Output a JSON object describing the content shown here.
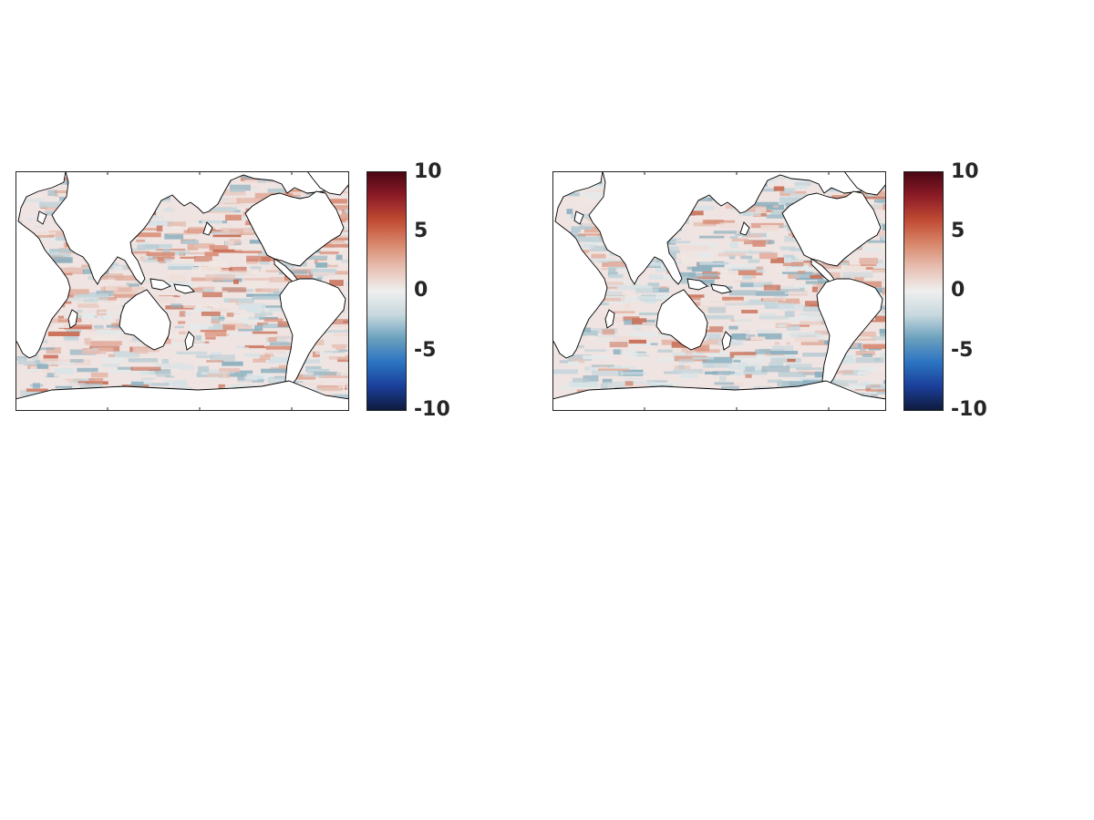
{
  "panels": [
    {
      "id": "left",
      "pattern": "warm"
    },
    {
      "id": "right",
      "pattern": "mild"
    }
  ],
  "colorbar": {
    "range": [
      -10,
      10
    ],
    "ticks": [
      "10",
      "5",
      "0",
      "-5",
      "-10"
    ],
    "tick_values": [
      10,
      5,
      0,
      -5,
      -10
    ],
    "stops": [
      "#0f1b3d",
      "#1b3f9a",
      "#2b73c2",
      "#6aa0bd",
      "#c7d8de",
      "#efefee",
      "#e7bfb2",
      "#d8866a",
      "#c04a33",
      "#8c1c27",
      "#4a0714"
    ]
  },
  "colors": {
    "land": "#ffffff",
    "coast": "#000000",
    "frame": "#222222"
  }
}
